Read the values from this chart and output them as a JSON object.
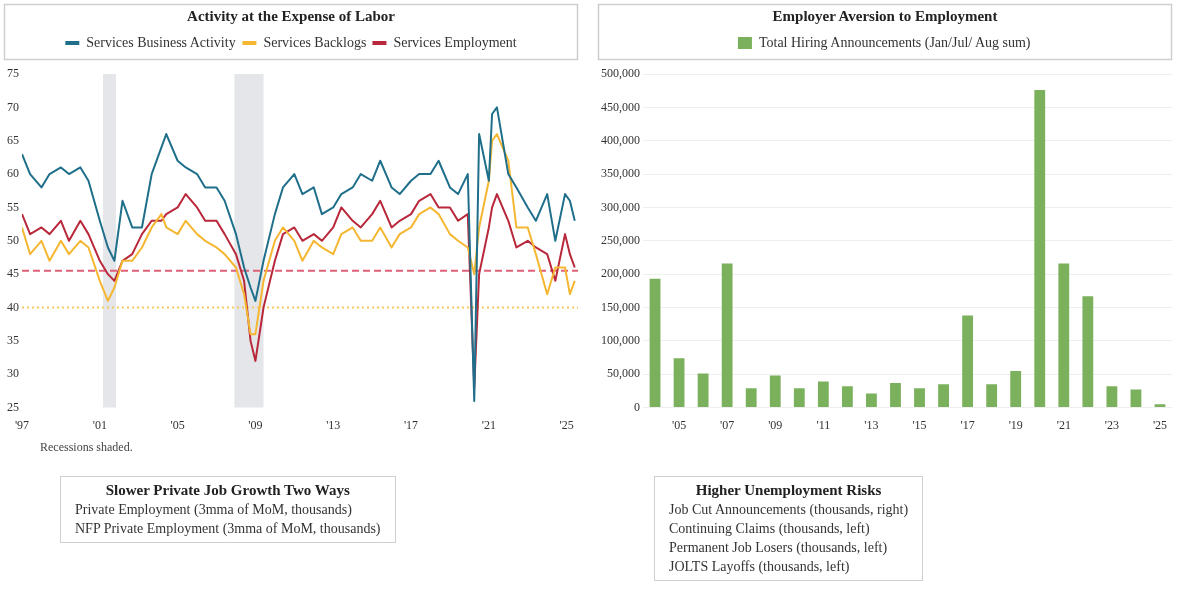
{
  "chart_data": [
    {
      "type": "line",
      "title": "Activity at the Expense of Labor",
      "legend": "top",
      "marker": "none",
      "grid": false,
      "x": [
        "1997-01",
        "1997-06",
        "1998-01",
        "1998-06",
        "1999-01",
        "1999-06",
        "2000-01",
        "2000-06",
        "2001-01",
        "2001-06",
        "2001-10",
        "2002-03",
        "2002-09",
        "2003-03",
        "2003-09",
        "2004-03",
        "2004-06",
        "2005-01",
        "2005-06",
        "2006-01",
        "2006-06",
        "2007-01",
        "2007-06",
        "2008-01",
        "2008-06",
        "2008-10",
        "2009-01",
        "2009-06",
        "2010-01",
        "2010-06",
        "2011-01",
        "2011-06",
        "2012-01",
        "2012-06",
        "2013-01",
        "2013-06",
        "2014-01",
        "2014-06",
        "2015-01",
        "2015-06",
        "2016-01",
        "2016-06",
        "2017-01",
        "2017-06",
        "2018-01",
        "2018-06",
        "2019-01",
        "2019-06",
        "2019-12",
        "2020-04",
        "2020-07",
        "2021-01",
        "2021-03",
        "2021-06",
        "2022-01",
        "2022-06",
        "2023-01",
        "2023-06",
        "2024-01",
        "2024-06",
        "2024-12",
        "2025-03",
        "2025-06"
      ],
      "series": [
        {
          "name": "Services Business Activity",
          "color": "#1f6f8b",
          "values": [
            63,
            60,
            58,
            60,
            61,
            60,
            61,
            59,
            53,
            49,
            47,
            56,
            52,
            52,
            60,
            64,
            66,
            62,
            61,
            60,
            58,
            58,
            56,
            51,
            46,
            43,
            41,
            47,
            54,
            58,
            60,
            57,
            58,
            54,
            55,
            57,
            58,
            60,
            59,
            62,
            58,
            57,
            59,
            60,
            60,
            62,
            58,
            57,
            60,
            26,
            66,
            59,
            69,
            70,
            60,
            58,
            55,
            53,
            57,
            50,
            57,
            56,
            53
          ]
        },
        {
          "name": "Services Backlogs",
          "color": "#f5b731",
          "values": [
            52,
            48,
            50,
            47,
            50,
            48,
            50,
            49,
            44,
            41,
            43,
            47,
            47,
            49,
            52,
            54,
            52,
            51,
            53,
            51,
            50,
            49,
            48,
            46,
            42,
            36,
            36,
            44,
            50,
            52,
            50,
            47,
            50,
            49,
            48,
            51,
            52,
            50,
            50,
            52,
            49,
            51,
            52,
            54,
            55,
            54,
            51,
            50,
            49,
            45,
            52,
            59,
            65,
            66,
            62,
            52,
            52,
            48,
            42,
            46,
            46,
            42,
            44
          ]
        },
        {
          "name": "Services Employment",
          "color": "#b8283a",
          "values": [
            54,
            51,
            52,
            51,
            53,
            50,
            53,
            51,
            47,
            45,
            44,
            47,
            48,
            51,
            53,
            53,
            54,
            55,
            57,
            55,
            53,
            53,
            51,
            48,
            44,
            35,
            32,
            40,
            47,
            51,
            52,
            50,
            51,
            50,
            52,
            55,
            53,
            52,
            54,
            56,
            52,
            53,
            54,
            56,
            57,
            55,
            55,
            53,
            54,
            28,
            45,
            52,
            55,
            57,
            53,
            49,
            50,
            49,
            48,
            44,
            51,
            48,
            46
          ]
        }
      ],
      "xlim": [
        "1997-01",
        "2025-08"
      ],
      "xticks": [
        {
          "value": "1997-01",
          "label": "'97"
        },
        {
          "value": "2001-01",
          "label": "'01"
        },
        {
          "value": "2005-01",
          "label": "'05"
        },
        {
          "value": "2009-01",
          "label": "'09"
        },
        {
          "value": "2013-01",
          "label": "'13"
        },
        {
          "value": "2017-01",
          "label": "'17"
        },
        {
          "value": "2021-01",
          "label": "'21"
        },
        {
          "value": "2025-01",
          "label": "'25"
        }
      ],
      "ylim": [
        25,
        75
      ],
      "yticks": [
        25,
        30,
        35,
        40,
        45,
        50,
        55,
        60,
        65,
        70,
        75
      ],
      "ref_lines": [
        {
          "axis": "y",
          "value": 45.5,
          "label": null,
          "color": "#e0607a",
          "line_style": "dashed"
        },
        {
          "axis": "y",
          "value": 40,
          "label": null,
          "color": "#f5c860",
          "line_style": "dotted"
        }
      ],
      "bands": [
        {
          "axis": "x",
          "from": "2001-03",
          "to": "2001-11",
          "label": null,
          "color": "#e4e6ea"
        },
        {
          "axis": "x",
          "from": "2007-12",
          "to": "2009-06",
          "label": null,
          "color": "#e4e6ea"
        }
      ],
      "annotations": [
        "Recessions shaded."
      ]
    },
    {
      "type": "bar",
      "title": "Employer Aversion to Employment",
      "legend": "top",
      "grid": "y",
      "categories": [
        null,
        "'05",
        null,
        "'07",
        null,
        "'09",
        null,
        "'11",
        null,
        "'13",
        null,
        "'15",
        null,
        "'17",
        null,
        "'19",
        null,
        "'21",
        null,
        "'23",
        null,
        "'25"
      ],
      "series": [
        {
          "name": "Total Hiring Announcements (Jan/Jul/ Aug sum)",
          "color": "#7bb05c",
          "values": [
            193000,
            74000,
            51000,
            216000,
            29000,
            48000,
            29000,
            39000,
            32000,
            21000,
            37000,
            29000,
            35000,
            138000,
            35000,
            55000,
            476000,
            216000,
            167000,
            32000,
            27000,
            5000
          ]
        }
      ],
      "ylim": [
        0,
        500000
      ],
      "yticks": [
        0,
        {
          "value": 50000,
          "label": "50,000"
        },
        {
          "value": 100000,
          "label": "100,000"
        },
        {
          "value": 150000,
          "label": "150,000"
        },
        {
          "value": 200000,
          "label": "200,000"
        },
        {
          "value": 250000,
          "label": "250,000"
        },
        {
          "value": 300000,
          "label": "300,000"
        },
        {
          "value": 350000,
          "label": "350,000"
        },
        {
          "value": 400000,
          "label": "400,000"
        },
        {
          "value": 450000,
          "label": "450,000"
        },
        {
          "value": 500000,
          "label": "500,000"
        }
      ]
    },
    {
      "type": "other",
      "title": "Slower Private Job Growth Two Ways",
      "annotations": [
        "Private Employment (3mma of MoM, thousands)",
        "NFP Private Employment (3mma of MoM, thousands)"
      ]
    },
    {
      "type": "other",
      "title": "Higher Unemployment Risks",
      "annotations": [
        "Job Cut Announcements (thousands, right)",
        "Continuing Claims (thousands, left)",
        "Permanent Job Losers (thousands, left)",
        "JOLTS Layoffs (thousands, left)"
      ]
    }
  ]
}
